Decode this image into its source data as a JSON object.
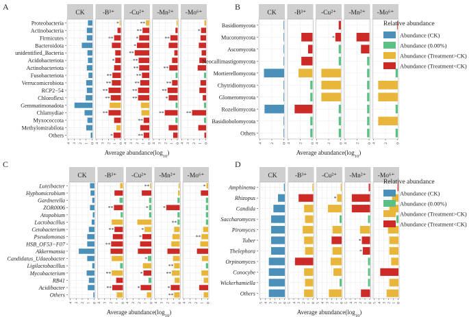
{
  "colors": {
    "ck": "#4a90b8",
    "zero": "#5cc085",
    "greater": "#e8b63a",
    "less": "#cc2a26",
    "strip": "#cfcfcf",
    "grid": "#ebebeb",
    "text": "#222222"
  },
  "legend": {
    "title": "Relative abundance",
    "items": [
      {
        "key": "ck",
        "label": "Abundance (CK)"
      },
      {
        "key": "zero",
        "label": "Abundance (0.00%)"
      },
      {
        "key": "greater",
        "label": "Abundance (Treatment>CK)"
      },
      {
        "key": "less",
        "label": "Abundance (Treatment<CK)"
      }
    ]
  },
  "chart_data": [
    {
      "panel": "A",
      "type": "bar",
      "orientation": "horizontal",
      "italic_categories": false,
      "xlabel_main": "Average abundance(log",
      "xlabel_sub": "10",
      "xlabel_close": ")",
      "ticks": [
        "4",
        "3",
        "2",
        "1",
        "0"
      ],
      "columns": [
        "CK",
        "-B³⁺",
        "-Cu²⁺",
        "-Mn²⁺",
        "-Mo⁶⁺"
      ],
      "categories": [
        "Proteobacteria",
        "Actinobacteria",
        "Firmicutes",
        "Bacteroidota",
        "unidentified_Bacteria",
        "Acidobacteriota",
        "Actinobacteriota",
        "Fusobacteriota",
        "Verrucomicrobiota",
        "RCP2−54",
        "Chloroflexi",
        "Gemmatimonadota",
        "Chlamydiae",
        "Myxococcota",
        "Methylomirabilota",
        "Others"
      ],
      "series": [
        {
          "name": "CK",
          "values": [
            0.8,
            1.0,
            1.0,
            1.9,
            0.9,
            0.8,
            1.0,
            0.7,
            1.1,
            1.0,
            1.2,
            3.2,
            1.4,
            0.9,
            1.1,
            0.3
          ]
        },
        {
          "name": "-B³⁺",
          "values": [
            0.2,
            0.6,
            1.2,
            1.6,
            1.0,
            1.0,
            1.2,
            1.5,
            1.6,
            2.2,
            1.8,
            2.0,
            2.2,
            1.2,
            0.8,
            1.3
          ]
        },
        {
          "name": "-Cu²⁺",
          "values": [
            0.6,
            1.2,
            1.8,
            2.2,
            2.6,
            1.9,
            1.8,
            1.3,
            1.6,
            2.0,
            2.0,
            1.5,
            1.4,
            1.0,
            1.6,
            1.0
          ]
        },
        {
          "name": "-Mn²⁺",
          "values": [
            0.2,
            0.4,
            1.3,
            1.6,
            0.6,
            1.0,
            1.5,
            0.3,
            1.0,
            1.8,
            1.6,
            0.2,
            2.3,
            0.4,
            1.6,
            0.8
          ]
        },
        {
          "name": "-Mo⁶⁺",
          "values": [
            0.3,
            0.9,
            1.0,
            1.3,
            0.8,
            1.2,
            1.5,
            0.2,
            1.0,
            1.2,
            0.6,
            0.2,
            2.5,
            0.3,
            1.4,
            0.3
          ]
        }
      ],
      "colors": [
        [
          "ck",
          "ck",
          "ck",
          "ck",
          "ck",
          "ck",
          "ck",
          "ck",
          "ck",
          "ck",
          "ck",
          "ck",
          "ck",
          "ck",
          "ck",
          "ck"
        ],
        [
          "greater",
          "less",
          "less",
          "less",
          "less",
          "less",
          "less",
          "less",
          "less",
          "less",
          "less",
          "greater",
          "less",
          "less",
          "greater",
          "less"
        ],
        [
          "greater",
          "less",
          "less",
          "less",
          "less",
          "less",
          "less",
          "less",
          "less",
          "less",
          "less",
          "greater",
          "greater",
          "less",
          "less",
          "less"
        ],
        [
          "greater",
          "less",
          "less",
          "less",
          "less",
          "less",
          "less",
          "zero",
          "less",
          "less",
          "less",
          "zero",
          "less",
          "zero",
          "less",
          "less"
        ],
        [
          "greater",
          "less",
          "less",
          "less",
          "less",
          "less",
          "less",
          "zero",
          "less",
          "less",
          "less",
          "zero",
          "less",
          "zero",
          "less",
          "less"
        ]
      ],
      "stars": [
        [
          "",
          "",
          "",
          "",
          "",
          "",
          "",
          "",
          "",
          "",
          "",
          "",
          "",
          "",
          "",
          ""
        ],
        [
          "*",
          "",
          "**",
          "",
          "",
          "*",
          "",
          "**",
          "**",
          "**",
          "**",
          "",
          "**",
          "",
          "",
          "*"
        ],
        [
          "**",
          "**",
          "*",
          "*",
          "**",
          "**",
          "**",
          "**",
          "**",
          "**",
          "**",
          "",
          "",
          "**",
          "",
          "**"
        ],
        [
          "",
          "",
          "**",
          "",
          "",
          "",
          "**",
          "",
          "**",
          "**",
          "*",
          "",
          "**",
          "",
          "",
          ""
        ],
        [
          "",
          "*",
          "",
          "",
          "",
          "",
          "",
          "",
          "",
          "",
          "",
          "",
          "**",
          "",
          "",
          ""
        ]
      ]
    },
    {
      "panel": "B",
      "type": "bar",
      "orientation": "horizontal",
      "italic_categories": false,
      "xlabel_main": "Average abundance(log",
      "xlabel_sub": "10",
      "xlabel_close": ")",
      "ticks": [
        "4",
        "2",
        "0"
      ],
      "columns": [
        "CK",
        "-B³⁺",
        "-Cu²⁺",
        "-Mn²⁺",
        "-Mo⁶⁺"
      ],
      "categories": [
        "Basidiomycota",
        "Mucoromycota",
        "Ascomycota",
        "Neocallimastigomycota",
        "Mortierellomycota",
        "Chytridiomycota",
        "Glomeromycota",
        "Rozellomycota",
        "Basidiobolomycota",
        "Others"
      ],
      "series": [
        {
          "name": "CK",
          "values": [
            0.1,
            0.1,
            0.1,
            0.1,
            3.6,
            0.1,
            0.1,
            3.5,
            0.1,
            0.1
          ]
        },
        {
          "name": "-B³⁺",
          "values": [
            0.2,
            2.0,
            0.8,
            2.0,
            2.5,
            0.4,
            0.4,
            3.2,
            0.4,
            0.4
          ]
        },
        {
          "name": "-Cu²⁺",
          "values": [
            0.4,
            1.0,
            0.4,
            0.4,
            3.5,
            3.5,
            3.5,
            0.4,
            0.4,
            0.4
          ]
        },
        {
          "name": "-Mn²⁺",
          "values": [
            0.4,
            2.3,
            1.5,
            0.4,
            0.4,
            0.4,
            0.4,
            0.4,
            0.4,
            0.4
          ]
        },
        {
          "name": "-Mo⁶⁺",
          "values": [
            0.1,
            0.1,
            0.1,
            0.1,
            0.4,
            3.5,
            3.5,
            0.4,
            3.5,
            0.4
          ]
        }
      ],
      "colors": [
        [
          "ck",
          "ck",
          "ck",
          "ck",
          "ck",
          "ck",
          "ck",
          "ck",
          "ck",
          "ck"
        ],
        [
          "none",
          "less",
          "less",
          "less",
          "greater",
          "zero",
          "zero",
          "less",
          "zero",
          "zero"
        ],
        [
          "less",
          "less",
          "zero",
          "zero",
          "greater",
          "greater",
          "greater",
          "zero",
          "zero",
          "zero"
        ],
        [
          "none",
          "less",
          "less",
          "zero",
          "zero",
          "zero",
          "zero",
          "zero",
          "zero",
          "zero"
        ],
        [
          "less",
          "none",
          "none",
          "none",
          "zero",
          "greater",
          "greater",
          "zero",
          "greater",
          "zero"
        ]
      ],
      "stars": [
        [
          "",
          "",
          "",
          "",
          "",
          "",
          "",
          "",
          "",
          ""
        ],
        [
          "",
          "",
          "",
          "",
          "",
          "",
          "",
          "",
          "",
          ""
        ],
        [
          "",
          "*",
          "",
          "",
          "",
          "",
          "",
          "",
          "",
          ""
        ],
        [
          "",
          "",
          "",
          "",
          "",
          "",
          "",
          "",
          "",
          ""
        ],
        [
          "",
          "",
          "",
          "",
          "",
          "",
          "",
          "",
          "",
          ""
        ]
      ]
    },
    {
      "panel": "C",
      "type": "bar",
      "orientation": "horizontal",
      "italic_categories": true,
      "xlabel_main": "Average abundance(log",
      "xlabel_sub": "10",
      "xlabel_close": ")",
      "ticks": [
        "4",
        "3",
        "2",
        "1",
        "0"
      ],
      "columns": [
        "CK",
        "-B³⁺",
        "-Cu²⁺",
        "-Mn²⁺",
        "-Mo⁶⁺"
      ],
      "categories": [
        "Luteibacter",
        "Hyphomicrobium",
        "Gardnerella",
        "ZOR0006",
        "Atopobium",
        "Lactobacillus",
        "Cetobacterium",
        "Pseudomonas",
        "HSB_OF53−F07",
        "Akkermansia",
        "Candidatus_Udaeobacter",
        "Ligilactobacillus",
        "Mycobacterium",
        "RB41",
        "Acidibacter",
        "Others"
      ],
      "series": [
        {
          "name": "CK",
          "values": [
            0.8,
            0.7,
            0.4,
            0.8,
            0.3,
            0.5,
            1.0,
            1.3,
            1.3,
            2.8,
            1.3,
            0.4,
            1.4,
            1.0,
            1.2,
            0.2
          ]
        },
        {
          "name": "-B³⁺",
          "values": [
            0.5,
            1.5,
            0.6,
            1.6,
            0.4,
            2.0,
            1.5,
            1.8,
            2.1,
            2.2,
            2.0,
            0.5,
            2.0,
            1.2,
            1.9,
            1.1
          ]
        },
        {
          "name": "-Cu²⁺",
          "values": [
            0.2,
            1.7,
            0.4,
            0.4,
            0.4,
            2.5,
            1.2,
            1.6,
            2.0,
            2.4,
            1.0,
            1.5,
            1.4,
            0.5,
            1.9,
            0.8
          ]
        },
        {
          "name": "-Mn²⁺",
          "values": [
            0.2,
            0.3,
            0.4,
            2.4,
            0.4,
            0.4,
            1.0,
            1.3,
            1.5,
            2.2,
            1.2,
            1.0,
            1.4,
            0.9,
            1.6,
            1.0
          ]
        },
        {
          "name": "-Mo⁶⁺",
          "values": [
            0.3,
            1.3,
            0.4,
            0.4,
            0.4,
            0.4,
            0.9,
            1.2,
            1.4,
            2.0,
            1.1,
            0.4,
            1.2,
            0.8,
            1.6,
            0.8
          ]
        }
      ],
      "colors": [
        [
          "ck",
          "ck",
          "ck",
          "ck",
          "ck",
          "ck",
          "ck",
          "ck",
          "ck",
          "ck",
          "ck",
          "ck",
          "ck",
          "ck",
          "ck",
          "ck"
        ],
        [
          "greater",
          "less",
          "zero",
          "less",
          "zero",
          "greater",
          "less",
          "less",
          "less",
          "less",
          "greater",
          "zero",
          "greater",
          "less",
          "less",
          "greater"
        ],
        [
          "greater",
          "less",
          "zero",
          "zero",
          "zero",
          "greater",
          "greater",
          "less",
          "less",
          "less",
          "zero",
          "greater",
          "less",
          "zero",
          "less",
          "greater"
        ],
        [
          "greater",
          "greater",
          "zero",
          "less",
          "zero",
          "zero",
          "greater",
          "greater",
          "greater",
          "less",
          "greater",
          "greater",
          "greater",
          "greater",
          "less",
          "greater"
        ],
        [
          "greater",
          "less",
          "zero",
          "zero",
          "zero",
          "zero",
          "greater",
          "greater",
          "greater",
          "less",
          "greater",
          "zero",
          "greater",
          "greater",
          "less",
          "greater"
        ]
      ],
      "stars": [
        [
          "",
          "",
          "",
          "",
          "",
          "",
          "",
          "",
          "",
          "",
          "",
          "",
          "",
          "",
          "",
          ""
        ],
        [
          "",
          "",
          "",
          "**",
          "",
          "",
          "**",
          "",
          "**",
          "",
          "",
          "",
          "**",
          "",
          "**",
          ""
        ],
        [
          "**",
          "",
          "",
          "*",
          "",
          "",
          "*",
          "*",
          "",
          "",
          "*",
          "",
          "*",
          "",
          "*",
          ""
        ],
        [
          "",
          "",
          "",
          "*",
          "",
          "**",
          "",
          "",
          "",
          "",
          "",
          "**",
          "**",
          "",
          "*",
          "**"
        ],
        [
          "*",
          "",
          "",
          "",
          "",
          "",
          "",
          "**",
          "",
          "",
          "",
          "",
          "",
          "",
          "",
          ""
        ]
      ]
    },
    {
      "panel": "D",
      "type": "bar",
      "orientation": "horizontal",
      "italic_categories": true,
      "xlabel_main": "Average abundance(log",
      "xlabel_sub": "10",
      "xlabel_close": ")",
      "ticks": [
        "5",
        "4",
        "3",
        "2",
        "1",
        "0"
      ],
      "columns": [
        "CK",
        "-B³⁺",
        "-Cu²⁺",
        "-Mn²⁺",
        "-Mo⁶⁺"
      ],
      "categories": [
        "Amphinema",
        "Rhizopus",
        "Candida",
        "Saccharomyces",
        "Piromyces",
        "Tuber",
        "Thelephora",
        "Orpinomyces",
        "Conocybe",
        "Wickerhamiella",
        "Others"
      ],
      "series": [
        {
          "name": "CK",
          "values": [
            0.2,
            1.5,
            2.5,
            3.0,
            3.0,
            3.0,
            3.0,
            3.5,
            3.5,
            3.5,
            3.5
          ]
        },
        {
          "name": "-B³⁺",
          "values": [
            0.2,
            3.2,
            2.0,
            1.8,
            2.3,
            2.0,
            1.8,
            4.0,
            2.0,
            1.8,
            2.0
          ]
        },
        {
          "name": "-Cu²⁺",
          "values": [
            0.2,
            1.0,
            3.0,
            0.4,
            2.0,
            2.2,
            2.0,
            2.4,
            1.8,
            0.4,
            2.8
          ]
        },
        {
          "name": "-Mn²⁺",
          "values": [
            0.3,
            4.0,
            4.0,
            0.4,
            2.2,
            1.8,
            1.6,
            0.4,
            0.4,
            0.4,
            2.0
          ]
        },
        {
          "name": "-Mo⁶⁺",
          "values": [
            0.2,
            1.4,
            2.0,
            0.4,
            2.3,
            2.0,
            2.0,
            1.6,
            4.0,
            2.0,
            2.6
          ]
        }
      ],
      "colors": [
        [
          "ck",
          "ck",
          "ck",
          "ck",
          "ck",
          "ck",
          "ck",
          "ck",
          "ck",
          "ck",
          "ck"
        ],
        [
          "greater",
          "less",
          "greater",
          "greater",
          "greater",
          "greater",
          "greater",
          "less",
          "greater",
          "greater",
          "greater"
        ],
        [
          "greater",
          "greater",
          "greater",
          "zero",
          "greater",
          "less",
          "greater",
          "greater",
          "greater",
          "zero",
          "greater"
        ],
        [
          "less",
          "less",
          "less",
          "zero",
          "greater",
          "less",
          "less",
          "zero",
          "zero",
          "zero",
          "less"
        ],
        [
          "less",
          "greater",
          "greater",
          "zero",
          "greater",
          "greater",
          "greater",
          "greater",
          "less",
          "greater",
          "greater"
        ]
      ],
      "stars": [
        [
          "",
          "",
          "",
          "",
          "",
          "",
          "",
          "",
          "",
          "",
          ""
        ],
        [
          "",
          "",
          "",
          "",
          "",
          "",
          "",
          "",
          "",
          "",
          ""
        ],
        [
          "",
          "*",
          "",
          "",
          "",
          "",
          "",
          "",
          "",
          "",
          ""
        ],
        [
          "",
          "",
          "",
          "",
          "",
          "*",
          "*",
          "",
          "",
          "",
          ""
        ],
        [
          "",
          "",
          "",
          "",
          "",
          "",
          "",
          "",
          "",
          "",
          ""
        ]
      ]
    }
  ]
}
